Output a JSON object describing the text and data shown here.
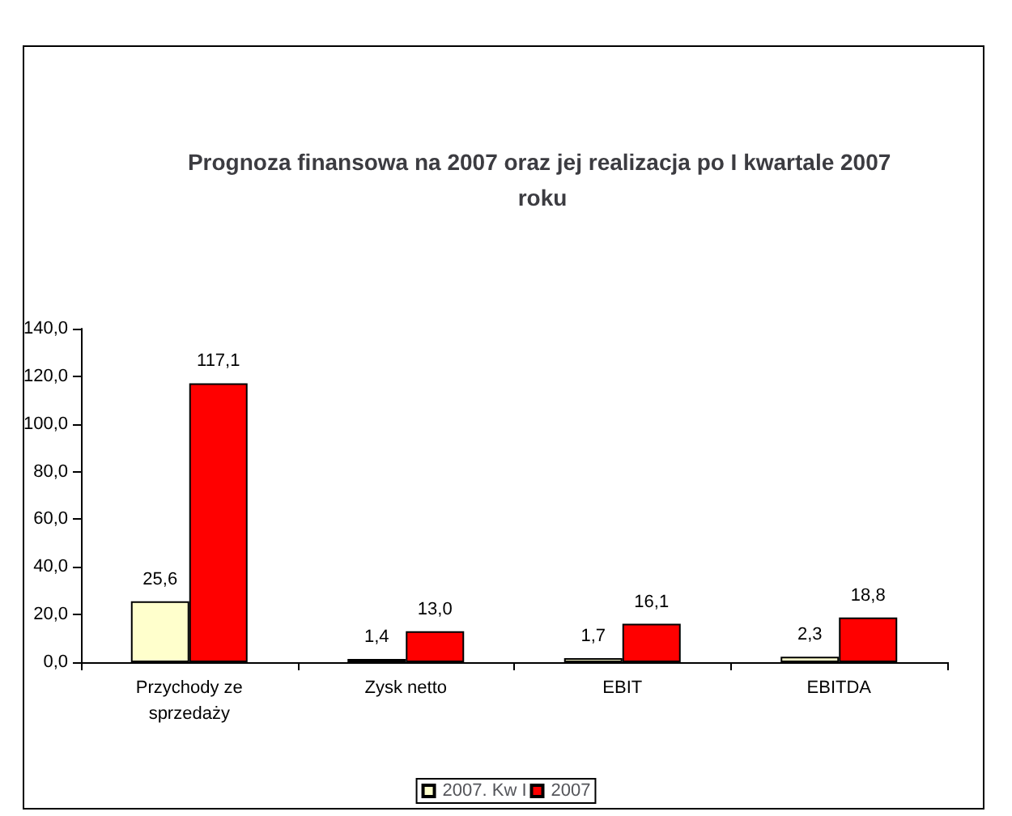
{
  "chart_data": {
    "type": "bar",
    "title": "Prognoza finansowa na 2007 oraz jej realizacja po I kwartale 2007 roku",
    "categories": [
      "Przychody ze\nsprzedaży",
      "Zysk netto",
      "EBIT",
      "EBITDA"
    ],
    "series": [
      {
        "name": "2007. Kw I",
        "color": "#ffffcc",
        "values": [
          25.6,
          1.4,
          1.7,
          2.3
        ],
        "value_labels": [
          "25,6",
          "1,4",
          "1,7",
          "2,3"
        ]
      },
      {
        "name": "2007",
        "color": "#ff0000",
        "values": [
          117.1,
          13.0,
          16.1,
          18.8
        ],
        "value_labels": [
          "117,1",
          "13,0",
          "16,1",
          "18,8"
        ]
      }
    ],
    "ylim": [
      0,
      140
    ],
    "yticks": [
      {
        "value": 0,
        "label": "0,0"
      },
      {
        "value": 20,
        "label": "20,0"
      },
      {
        "value": 40,
        "label": "40,0"
      },
      {
        "value": 60,
        "label": "60,0"
      },
      {
        "value": 80,
        "label": "80,0"
      },
      {
        "value": 100,
        "label": "100,0"
      },
      {
        "value": 120,
        "label": "120,0"
      },
      {
        "value": 140,
        "label": "140,0"
      }
    ],
    "grid": false,
    "legend": "bottom"
  }
}
